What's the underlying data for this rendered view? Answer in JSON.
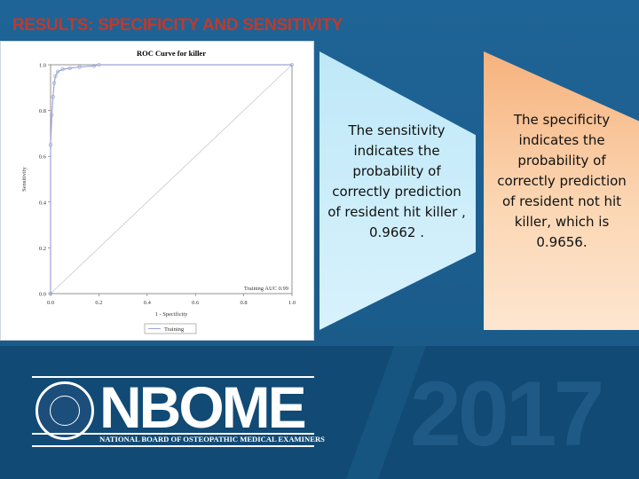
{
  "slide": {
    "title": "RESULTS: SPECIFICITY AND SENSITIVITY",
    "sensitivity_text": "The sensitivity indicates the probability of correctly prediction of resident hit killer , 0.9662 .",
    "specificity_text": "The specificity indicates the probability of correctly prediction of resident not hit killer, which is 0.9656.",
    "year": "2017"
  },
  "logo": {
    "brand": "NBOME",
    "subtitle": "NATIONAL BOARD OF OSTEOPATHIC MEDICAL EXAMINERS"
  },
  "colors": {
    "background": "#1c5f8f",
    "title": "#c0392b",
    "chevron_blue": "#cdeefb",
    "chevron_orange": "#f8c49a",
    "roc_line": "#9aa4d8"
  },
  "chart_data": {
    "type": "line",
    "title": "ROC Curve for killer",
    "xlabel": "1 - Specificity",
    "ylabel": "Sensitivity",
    "xlim": [
      0,
      1
    ],
    "ylim": [
      0,
      1
    ],
    "xticks": [
      "0.0",
      "0.2",
      "0.4",
      "0.6",
      "0.8",
      "1.0"
    ],
    "yticks": [
      "0.0",
      "0.2",
      "0.4",
      "0.6",
      "0.8",
      "1.0"
    ],
    "annotation": "Training AUC 0.99",
    "legend": [
      "Training"
    ],
    "legend_position": "bottom",
    "diagonal": true,
    "series": [
      {
        "name": "Training",
        "x": [
          0.0,
          0.0,
          0.005,
          0.01,
          0.015,
          0.02,
          0.03,
          0.05,
          0.08,
          0.12,
          0.18,
          0.2,
          1.0
        ],
        "y": [
          0.0,
          0.65,
          0.78,
          0.86,
          0.92,
          0.95,
          0.97,
          0.98,
          0.985,
          0.99,
          0.995,
          1.0,
          1.0
        ]
      }
    ]
  }
}
